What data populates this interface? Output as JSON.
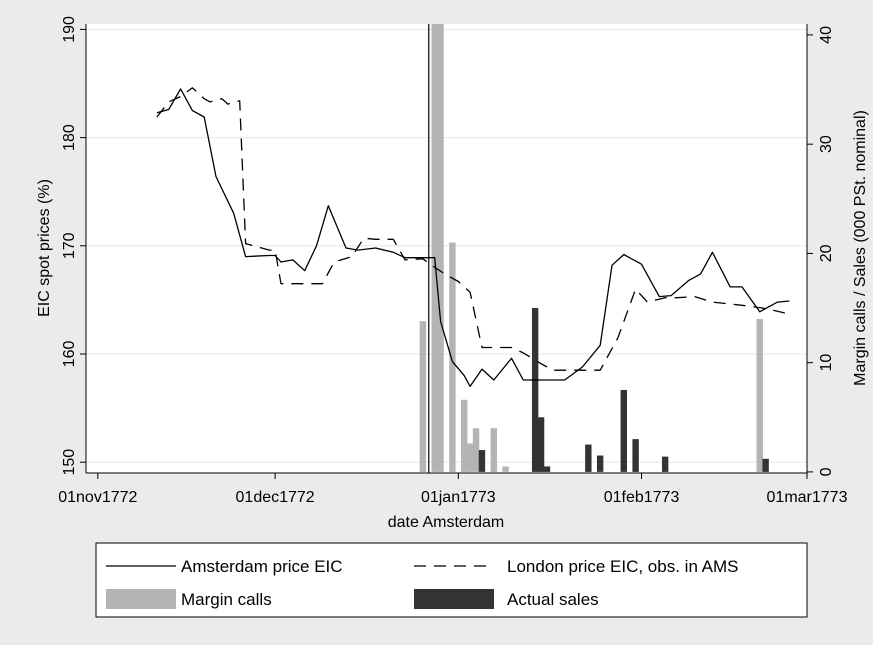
{
  "chart_data": {
    "type": "line",
    "xlabel": "date Amsterdam",
    "ylabel_left": "EIC spot prices (%)",
    "ylabel_right": "Margin calls / Sales (000 PSt. nominal)",
    "x_ticks": [
      "01nov1772",
      "01dec1772",
      "01jan1773",
      "01feb1773",
      "01mar1773"
    ],
    "x_range_days": [
      -2,
      120
    ],
    "y_left_ticks": [
      "150",
      "160",
      "170",
      "180",
      "190"
    ],
    "y_left_range": [
      149,
      190.5
    ],
    "y_right_ticks": [
      "0",
      "10",
      "20",
      "30",
      "40"
    ],
    "y_right_range": [
      -0.1,
      41
    ],
    "grid": true,
    "legend_position": "bottom",
    "vertical_marker_date": "1772-12-27",
    "colors": {
      "amsterdam": "#000000",
      "london": "#000000",
      "margin_calls": "#b4b4b4",
      "actual_sales": "#333333",
      "plot_bg": "#ffffff",
      "outer_bg": "#ebebeb",
      "grid": "#e6e6e6"
    },
    "series": [
      {
        "name": "Amsterdam price EIC",
        "kind": "line",
        "axis": "left",
        "style": "solid",
        "points": [
          [
            "1772-11-11",
            182.3
          ],
          [
            "1772-11-13",
            182.6
          ],
          [
            "1772-11-15",
            184.5
          ],
          [
            "1772-11-17",
            182.5
          ],
          [
            "1772-11-19",
            181.9
          ],
          [
            "1772-11-21",
            176.4
          ],
          [
            "1772-11-24",
            173.0
          ],
          [
            "1772-11-26",
            169.0
          ],
          [
            "1772-11-30",
            169.1
          ],
          [
            "1772-12-01",
            169.1
          ],
          [
            "1772-12-02",
            168.5
          ],
          [
            "1772-12-04",
            168.7
          ],
          [
            "1772-12-06",
            167.7
          ],
          [
            "1772-12-08",
            170.0
          ],
          [
            "1772-12-10",
            173.7
          ],
          [
            "1772-12-13",
            169.8
          ],
          [
            "1772-12-15",
            169.6
          ],
          [
            "1772-12-18",
            169.8
          ],
          [
            "1772-12-21",
            169.4
          ],
          [
            "1772-12-23",
            168.9
          ],
          [
            "1772-12-26",
            168.9
          ],
          [
            "1772-12-28",
            168.9
          ],
          [
            "1772-12-29",
            163.0
          ],
          [
            "1772-12-31",
            159.3
          ],
          [
            "1773-01-02",
            158.0
          ],
          [
            "1773-01-03",
            157.0
          ],
          [
            "1773-01-05",
            158.6
          ],
          [
            "1773-01-07",
            157.6
          ],
          [
            "1773-01-10",
            159.6
          ],
          [
            "1773-01-12",
            157.6
          ],
          [
            "1773-01-17",
            157.6
          ],
          [
            "1773-01-19",
            157.6
          ],
          [
            "1773-01-22",
            158.8
          ],
          [
            "1773-01-25",
            160.8
          ],
          [
            "1773-01-27",
            168.2
          ],
          [
            "1773-01-29",
            169.2
          ],
          [
            "1773-02-01",
            168.3
          ],
          [
            "1773-02-04",
            165.3
          ],
          [
            "1773-02-06",
            165.4
          ],
          [
            "1773-02-09",
            166.8
          ],
          [
            "1773-02-11",
            167.4
          ],
          [
            "1773-02-13",
            169.4
          ],
          [
            "1773-02-16",
            166.2
          ],
          [
            "1773-02-18",
            166.2
          ],
          [
            "1773-02-21",
            163.9
          ],
          [
            "1773-02-24",
            164.8
          ],
          [
            "1773-02-26",
            164.9
          ]
        ]
      },
      {
        "name": "London price EIC, obs. in AMS",
        "kind": "line",
        "axis": "left",
        "style": "dashed",
        "points": [
          [
            "1772-11-11",
            181.9
          ],
          [
            "1772-11-13",
            183.3
          ],
          [
            "1772-11-15",
            183.8
          ],
          [
            "1772-11-17",
            184.6
          ],
          [
            "1772-11-19",
            183.6
          ],
          [
            "1772-11-20",
            183.3
          ],
          [
            "1772-11-22",
            183.6
          ],
          [
            "1772-11-23",
            183.1
          ],
          [
            "1772-11-25",
            183.4
          ],
          [
            "1772-11-26",
            170.2
          ],
          [
            "1772-11-30",
            169.6
          ],
          [
            "1772-12-01",
            169.6
          ],
          [
            "1772-12-02",
            166.5
          ],
          [
            "1772-12-05",
            166.5
          ],
          [
            "1772-12-07",
            166.5
          ],
          [
            "1772-12-09",
            166.5
          ],
          [
            "1772-12-11",
            168.5
          ],
          [
            "1772-12-14",
            169.0
          ],
          [
            "1772-12-16",
            170.7
          ],
          [
            "1772-12-18",
            170.6
          ],
          [
            "1772-12-21",
            170.6
          ],
          [
            "1772-12-23",
            168.7
          ],
          [
            "1772-12-26",
            168.8
          ],
          [
            "1772-12-28",
            168.0
          ],
          [
            "1772-12-30",
            167.3
          ],
          [
            "1773-01-01",
            166.7
          ],
          [
            "1773-01-03",
            165.7
          ],
          [
            "1773-01-05",
            160.6
          ],
          [
            "1773-01-07",
            160.6
          ],
          [
            "1773-01-10",
            160.6
          ],
          [
            "1773-01-12",
            160.1
          ],
          [
            "1773-01-15",
            159.1
          ],
          [
            "1773-01-17",
            158.5
          ],
          [
            "1773-01-19",
            158.5
          ],
          [
            "1773-01-22",
            158.5
          ],
          [
            "1773-01-25",
            158.5
          ],
          [
            "1773-01-28",
            161.5
          ],
          [
            "1773-01-31",
            166.0
          ],
          [
            "1773-02-02",
            164.8
          ],
          [
            "1773-02-05",
            165.2
          ],
          [
            "1773-02-07",
            165.2
          ],
          [
            "1773-02-10",
            165.3
          ],
          [
            "1773-02-13",
            164.8
          ],
          [
            "1773-02-18",
            164.5
          ],
          [
            "1773-02-22",
            164.2
          ],
          [
            "1773-02-26",
            163.7
          ]
        ]
      },
      {
        "name": "Margin calls",
        "kind": "bar",
        "axis": "right",
        "points": [
          [
            "1772-12-26",
            13.8
          ],
          [
            "1772-12-28",
            41.0
          ],
          [
            "1772-12-29",
            41.0
          ],
          [
            "1772-12-31",
            21.0
          ],
          [
            "1773-01-02",
            6.6
          ],
          [
            "1773-01-03",
            2.6
          ],
          [
            "1773-01-04",
            4.0
          ],
          [
            "1773-01-07",
            4.0
          ],
          [
            "1773-01-09",
            0.5
          ],
          [
            "1773-02-21",
            14.0
          ]
        ]
      },
      {
        "name": "Actual sales",
        "kind": "bar",
        "axis": "right",
        "points": [
          [
            "1773-01-05",
            2.0
          ],
          [
            "1773-01-14",
            15.0
          ],
          [
            "1773-01-15",
            5.0
          ],
          [
            "1773-01-16",
            0.5
          ],
          [
            "1773-01-23",
            2.5
          ],
          [
            "1773-01-25",
            1.5
          ],
          [
            "1773-01-29",
            7.5
          ],
          [
            "1773-01-31",
            3.0
          ],
          [
            "1773-02-05",
            1.4
          ],
          [
            "1773-02-22",
            1.2
          ]
        ]
      }
    ]
  }
}
